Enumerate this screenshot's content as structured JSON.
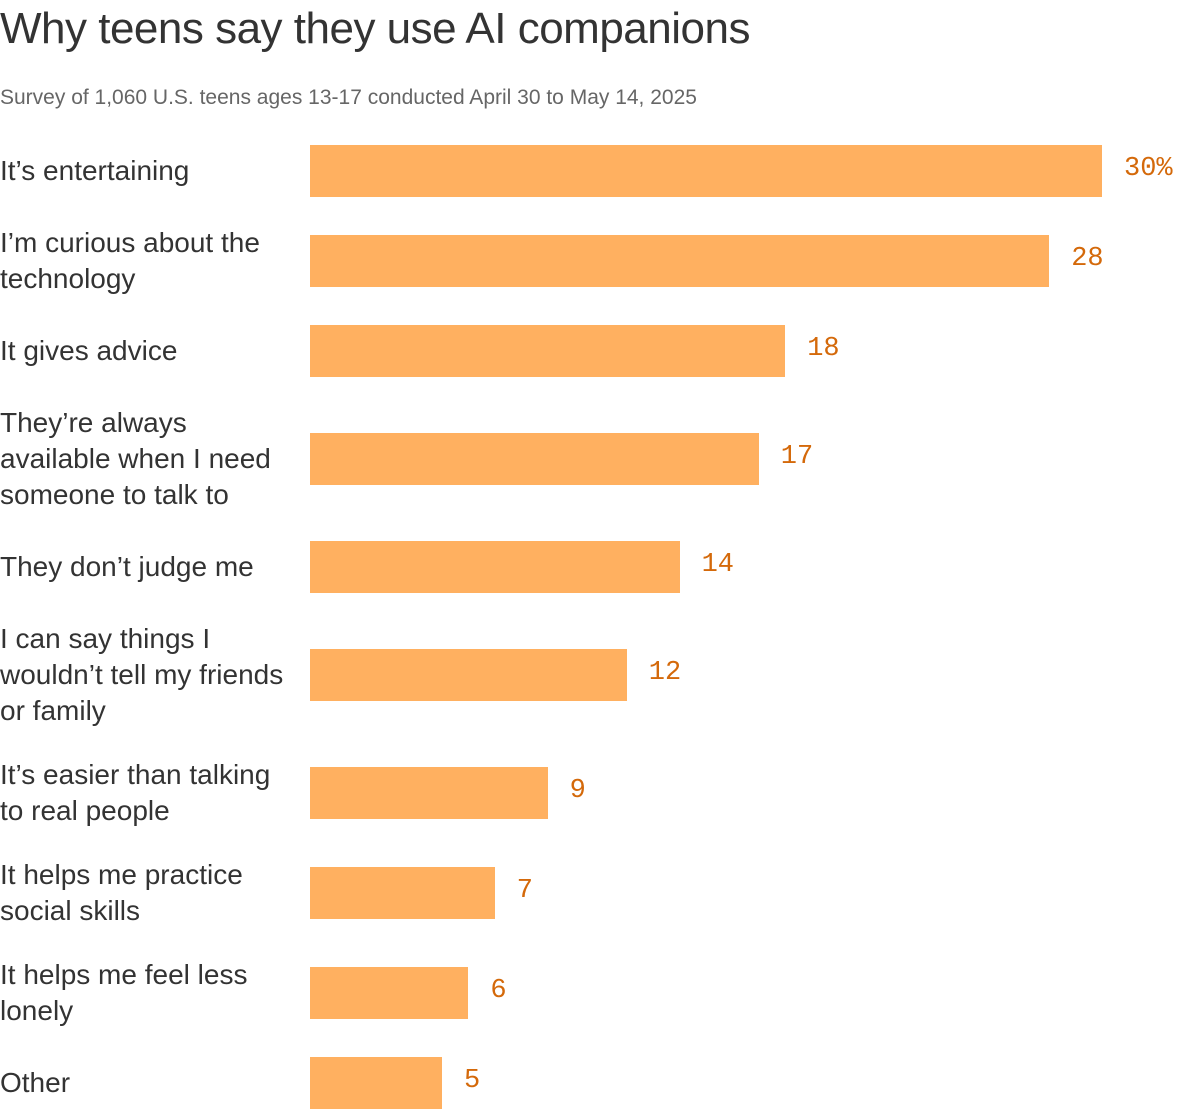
{
  "header": {
    "title": "Why teens say they use AI companions",
    "subtitle": "Survey of 1,060 U.S. teens ages 13-17 conducted April 30 to May 14, 2025"
  },
  "colors": {
    "bar": "#ffb060",
    "value_label": "#d4690a",
    "text": "#333333",
    "subtitle": "#666666"
  },
  "chart_data": {
    "type": "bar",
    "orientation": "horizontal",
    "title": "Why teens say they use AI companions",
    "subtitle": "Survey of 1,060 U.S. teens ages 13-17 conducted April 30 to May 14, 2025",
    "categories": [
      "It’s entertaining",
      "I’m curious about the technology",
      "It gives advice",
      "They’re always available when I need someone to talk to",
      "They don’t judge me",
      "I can say things I wouldn’t tell my friends or family",
      "It’s easier than talking to real people",
      "It helps me practice social skills",
      "It helps me feel less lonely",
      "Other"
    ],
    "values": [
      30,
      28,
      18,
      17,
      14,
      12,
      9,
      7,
      6,
      5
    ],
    "value_labels": [
      "30%",
      "28",
      "18",
      "17",
      "14",
      "12",
      "9",
      "7",
      "6",
      "5"
    ],
    "unit": "%",
    "xlim": [
      0,
      30
    ],
    "xlabel": "",
    "ylabel": "",
    "grid": false,
    "legend": "none"
  }
}
